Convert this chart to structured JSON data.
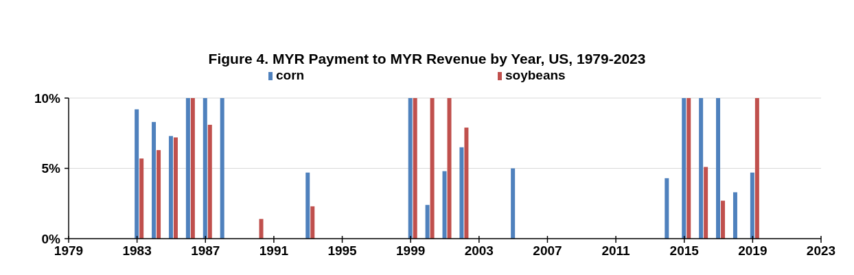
{
  "chart_data": {
    "type": "bar",
    "title": "Figure 4.  MYR Payment to MYR Revenue by Year, US, 1979-2023",
    "series": [
      {
        "name": "corn",
        "color": "#4f81bd",
        "x": [
          1983,
          1984,
          1985,
          1986,
          1987,
          1988,
          1993,
          1999,
          2000,
          2001,
          2002,
          2005,
          2014,
          2015,
          2016,
          2017,
          2018,
          2019
        ],
        "values": [
          9.2,
          8.3,
          7.3,
          10,
          10,
          10,
          4.7,
          10,
          2.4,
          4.8,
          6.5,
          5.0,
          4.3,
          10,
          10,
          10,
          3.3,
          4.7
        ]
      },
      {
        "name": "soybeans",
        "color": "#c0504d",
        "x": [
          1983,
          1984,
          1985,
          1986,
          1987,
          1990,
          1993,
          1999,
          2000,
          2001,
          2002,
          2015,
          2016,
          2017,
          2019
        ],
        "values": [
          5.7,
          6.3,
          7.2,
          10,
          8.1,
          1.4,
          2.3,
          10,
          10,
          10,
          7.9,
          10,
          5.1,
          2.7,
          10
        ]
      }
    ],
    "xlim": [
      1979,
      2023
    ],
    "xticks": [
      1979,
      1983,
      1987,
      1991,
      1995,
      1999,
      2003,
      2007,
      2011,
      2015,
      2019,
      2023
    ],
    "ylim": [
      0,
      10
    ],
    "yticks": [
      {
        "value": 0,
        "label": "0%"
      },
      {
        "value": 5,
        "label": "5%"
      },
      {
        "value": 10,
        "label": "10%"
      }
    ],
    "grid": "y",
    "legend": "top"
  }
}
